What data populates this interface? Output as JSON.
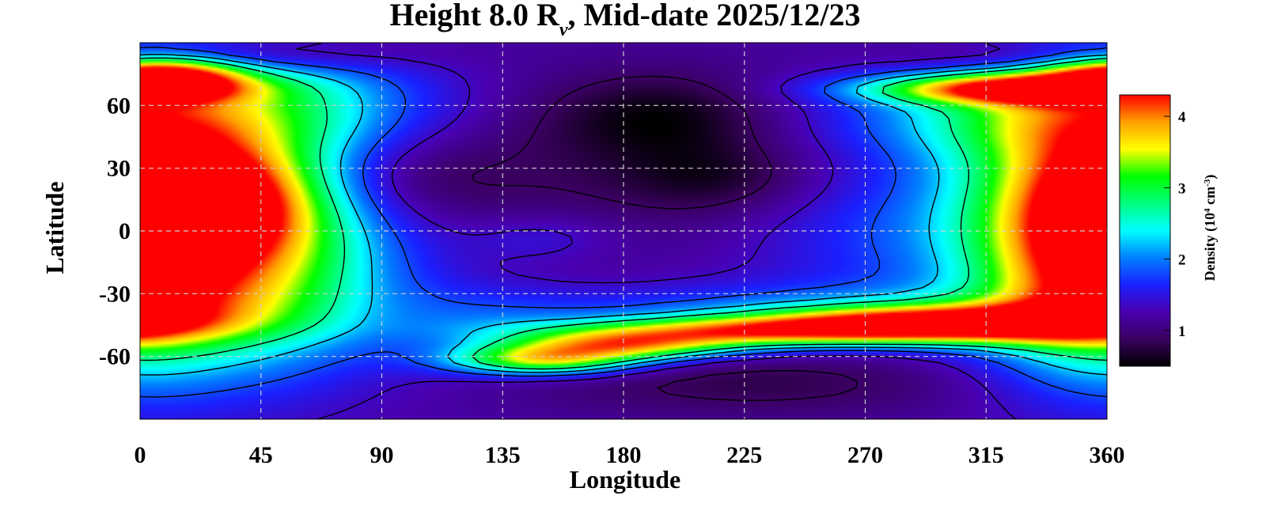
{
  "chart_data": {
    "type": "heatmap",
    "title": {
      "prefix": "Height 8.0 R",
      "subscript": "ν",
      "suffix": ", Mid-date 2025/12/23"
    },
    "xlabel": "Longitude",
    "ylabel": "Latitude",
    "xlim": [
      0,
      360
    ],
    "ylim": [
      -90,
      90
    ],
    "x_ticks": [
      0,
      45,
      90,
      135,
      180,
      225,
      270,
      315,
      360
    ],
    "y_ticks": [
      60,
      30,
      0,
      -30,
      -60
    ],
    "x_tick_labels": [
      "0",
      "45",
      "90",
      "135",
      "180",
      "225",
      "270",
      "315",
      "360"
    ],
    "y_tick_labels": [
      "60",
      "30",
      "0",
      "-30",
      "-60"
    ],
    "grid": true,
    "colorbar": {
      "label_prefix": "Density (10",
      "label_sup1": "4",
      "label_mid": " cm",
      "label_sup2": "-3",
      "label_suffix": ")",
      "range": [
        0.5,
        4.3
      ],
      "ticks": [
        1,
        2,
        3,
        4
      ],
      "tick_labels": [
        "1",
        "2",
        "3",
        "4"
      ],
      "colormap": [
        "#000000",
        "#3a0060",
        "#4a00b0",
        "#1a20ff",
        "#0080ff",
        "#00ffff",
        "#00ff80",
        "#00ff00",
        "#ffff00",
        "#ffa000",
        "#ff0000"
      ]
    },
    "background_density": 1.2,
    "features": [
      {
        "lon": 22,
        "lat": 15,
        "w": 28,
        "h": 18,
        "v": 2.0
      },
      {
        "lon": 10,
        "lat": 35,
        "w": 35,
        "h": 40,
        "v": 1.2
      },
      {
        "lon": 35,
        "lat": -25,
        "w": 45,
        "h": 30,
        "v": 1.3
      },
      {
        "lon": 15,
        "lat": -5,
        "w": 30,
        "h": 40,
        "v": 1.0
      },
      {
        "lon": 55,
        "lat": 60,
        "w": 45,
        "h": 18,
        "v": 0.9
      },
      {
        "lon": 8,
        "lat": 75,
        "w": 20,
        "h": 6,
        "v": 2.1
      },
      {
        "lon": 60,
        "lat": 10,
        "w": 25,
        "h": 40,
        "v": 0.6
      },
      {
        "lon": 280,
        "lat": 0,
        "w": 40,
        "h": 25,
        "v": 0.5
      },
      {
        "lon": 335,
        "lat": 20,
        "w": 30,
        "h": 45,
        "v": 1.0
      },
      {
        "lon": 350,
        "lat": -25,
        "w": 25,
        "h": 30,
        "v": 1.1
      },
      {
        "lon": 320,
        "lat": 55,
        "w": 50,
        "h": 15,
        "v": 0.9
      },
      {
        "lon": 330,
        "lat": 68,
        "w": 40,
        "h": 5,
        "v": 2.5
      },
      {
        "lon": 300,
        "lat": -44,
        "w": 45,
        "h": 6,
        "v": 2.5
      },
      {
        "lon": 230,
        "lat": -48,
        "w": 55,
        "h": 5,
        "v": 2.0
      },
      {
        "lon": 180,
        "lat": -55,
        "w": 30,
        "h": 5,
        "v": 2.0
      },
      {
        "lon": 150,
        "lat": -62,
        "w": 25,
        "h": 5,
        "v": 2.0
      },
      {
        "lon": 265,
        "lat": -40,
        "w": 90,
        "h": 10,
        "v": 0.8
      },
      {
        "lon": 195,
        "lat": 55,
        "w": 30,
        "h": 14,
        "v": -0.5
      },
      {
        "lon": 175,
        "lat": 35,
        "w": 60,
        "h": 30,
        "v": -0.3
      },
      {
        "lon": 215,
        "lat": 25,
        "w": 25,
        "h": 12,
        "v": -0.4
      },
      {
        "lon": 95,
        "lat": 25,
        "w": 30,
        "h": 15,
        "v": -0.35
      },
      {
        "lon": 230,
        "lat": -72,
        "w": 60,
        "h": 12,
        "v": -0.4
      },
      {
        "lon": 30,
        "lat": 84,
        "w": 40,
        "h": 6,
        "v": -0.7
      },
      {
        "lon": 325,
        "lat": 84,
        "w": 30,
        "h": 6,
        "v": -0.4
      },
      {
        "lon": 130,
        "lat": -45,
        "w": 25,
        "h": 12,
        "v": 0.3
      },
      {
        "lon": 150,
        "lat": -3,
        "w": 20,
        "h": 8,
        "v": 0.3
      }
    ]
  }
}
